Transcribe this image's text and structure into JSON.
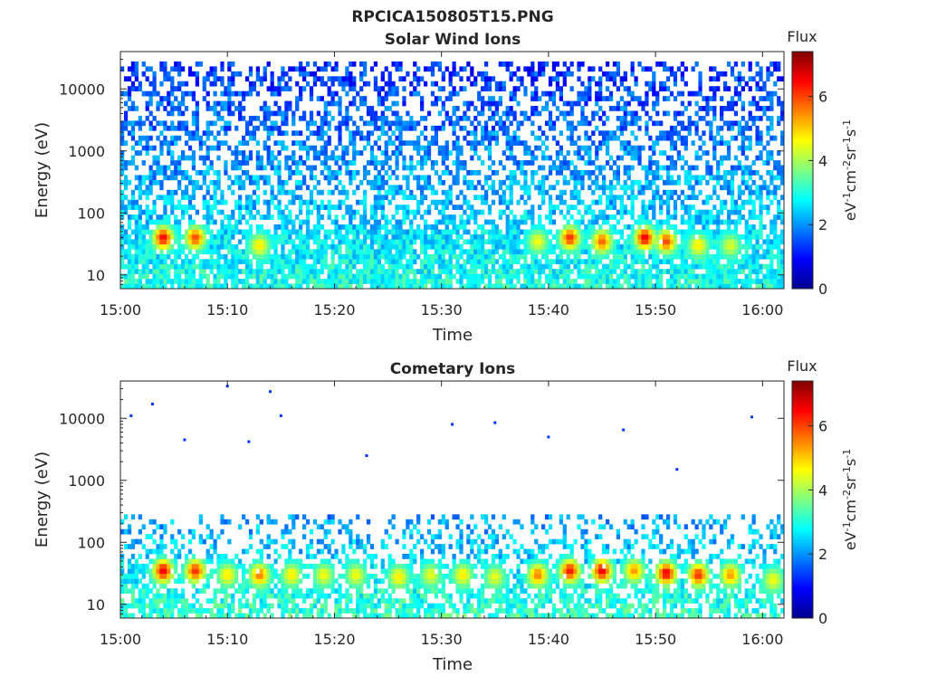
{
  "figure": {
    "title": "RPCICA150805T15.PNG"
  },
  "colormap": {
    "name": "jet",
    "stops": [
      "#00008f",
      "#0000ff",
      "#00ffff",
      "#ffff00",
      "#ff0000",
      "#800000"
    ]
  },
  "chart_data": [
    {
      "type": "heatmap",
      "title": "Solar Wind Ions",
      "xlabel": "Time",
      "ylabel": "Energy (eV)",
      "y_scale": "log",
      "ylim": [
        6,
        40000
      ],
      "xlim": [
        "15:00",
        "16:02"
      ],
      "x_ticks": [
        "15:00",
        "15:10",
        "15:20",
        "15:30",
        "15:40",
        "15:50",
        "16:00"
      ],
      "y_ticks": [
        "10",
        "100",
        "1000",
        "10000"
      ],
      "colorbar": {
        "title": "Flux",
        "label": "eV-1cm-2sr-1s-1",
        "label_main": "eV",
        "sup1": "-1",
        "mid1": "cm",
        "sup2": "-2",
        "mid2": "sr",
        "sup3": "-1",
        "mid3": "s",
        "sup4": "-1",
        "range": [
          0,
          7.4
        ],
        "ticks": [
          "0",
          "2",
          "4",
          "6"
        ]
      },
      "background": {
        "energy_range": [
          6,
          30000
        ],
        "typical_flux_low_energy": 3.0,
        "typical_flux_high_energy": 1.2
      },
      "hotspots": [
        {
          "time": "15:04",
          "energy": 40,
          "flux": 6.5
        },
        {
          "time": "15:07",
          "energy": 40,
          "flux": 6.0
        },
        {
          "time": "15:13",
          "energy": 30,
          "flux": 4.8
        },
        {
          "time": "15:39",
          "energy": 35,
          "flux": 4.6
        },
        {
          "time": "15:42",
          "energy": 40,
          "flux": 6.2
        },
        {
          "time": "15:45",
          "energy": 35,
          "flux": 5.8
        },
        {
          "time": "15:49",
          "energy": 40,
          "flux": 6.6
        },
        {
          "time": "15:51",
          "energy": 35,
          "flux": 6.0
        },
        {
          "time": "15:54",
          "energy": 30,
          "flux": 4.8
        },
        {
          "time": "15:57",
          "energy": 30,
          "flux": 4.4
        }
      ]
    },
    {
      "type": "heatmap",
      "title": "Cometary Ions",
      "xlabel": "Time",
      "ylabel": "Energy (eV)",
      "y_scale": "log",
      "ylim": [
        6,
        40000
      ],
      "xlim": [
        "15:00",
        "16:02"
      ],
      "x_ticks": [
        "15:00",
        "15:10",
        "15:20",
        "15:30",
        "15:40",
        "15:50",
        "16:00"
      ],
      "y_ticks": [
        "10",
        "100",
        "1000",
        "10000"
      ],
      "colorbar": {
        "title": "Flux",
        "label": "eV-1cm-2sr-1s-1",
        "label_main": "eV",
        "sup1": "-1",
        "mid1": "cm",
        "sup2": "-2",
        "mid2": "sr",
        "sup3": "-1",
        "mid3": "s",
        "sup4": "-1",
        "range": [
          0,
          7.4
        ],
        "ticks": [
          "0",
          "2",
          "4",
          "6"
        ]
      },
      "background": {
        "energy_range": [
          6,
          300
        ],
        "typical_flux_low_energy": 3.2,
        "typical_flux_high_energy": 2.0
      },
      "hotspots": [
        {
          "time": "15:04",
          "energy": 35,
          "flux": 6.6
        },
        {
          "time": "15:07",
          "energy": 35,
          "flux": 6.2
        },
        {
          "time": "15:10",
          "energy": 30,
          "flux": 4.8
        },
        {
          "time": "15:13",
          "energy": 30,
          "flux": 5.6
        },
        {
          "time": "15:16",
          "energy": 30,
          "flux": 4.8
        },
        {
          "time": "15:19",
          "energy": 30,
          "flux": 4.6
        },
        {
          "time": "15:22",
          "energy": 30,
          "flux": 4.6
        },
        {
          "time": "15:26",
          "energy": 28,
          "flux": 4.8
        },
        {
          "time": "15:29",
          "energy": 30,
          "flux": 4.5
        },
        {
          "time": "15:32",
          "energy": 30,
          "flux": 4.8
        },
        {
          "time": "15:35",
          "energy": 28,
          "flux": 4.5
        },
        {
          "time": "15:39",
          "energy": 30,
          "flux": 5.6
        },
        {
          "time": "15:42",
          "energy": 35,
          "flux": 6.4
        },
        {
          "time": "15:45",
          "energy": 35,
          "flux": 6.6
        },
        {
          "time": "15:48",
          "energy": 35,
          "flux": 5.4
        },
        {
          "time": "15:51",
          "energy": 32,
          "flux": 6.6
        },
        {
          "time": "15:54",
          "energy": 30,
          "flux": 6.2
        },
        {
          "time": "15:57",
          "energy": 30,
          "flux": 5.4
        },
        {
          "time": "16:01",
          "energy": 25,
          "flux": 4.6
        }
      ],
      "sparse_points": [
        {
          "time": "15:01",
          "energy": 11000
        },
        {
          "time": "15:03",
          "energy": 17000
        },
        {
          "time": "15:10",
          "energy": 33000
        },
        {
          "time": "15:14",
          "energy": 27000
        },
        {
          "time": "15:15",
          "energy": 11000
        },
        {
          "time": "15:06",
          "energy": 4500
        },
        {
          "time": "15:12",
          "energy": 4200
        },
        {
          "time": "15:31",
          "energy": 8000
        },
        {
          "time": "15:35",
          "energy": 8500
        },
        {
          "time": "15:47",
          "energy": 6500
        },
        {
          "time": "15:59",
          "energy": 10500
        },
        {
          "time": "15:23",
          "energy": 2500
        },
        {
          "time": "15:40",
          "energy": 5000
        },
        {
          "time": "15:52",
          "energy": 1500
        }
      ]
    }
  ]
}
